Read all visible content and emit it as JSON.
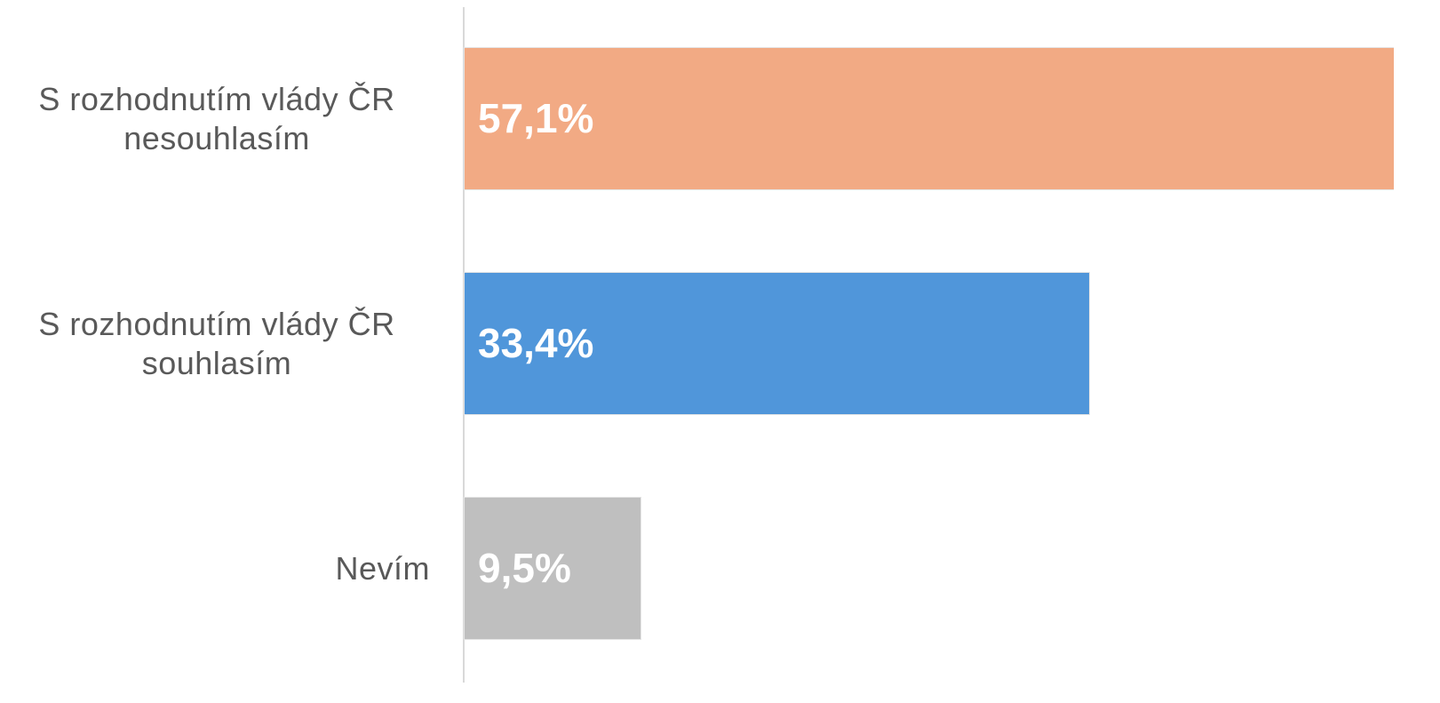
{
  "chart_data": {
    "type": "bar",
    "orientation": "horizontal",
    "categories": [
      "S rozhodnutím vlády ČR nesouhlasím",
      "S rozhodnutím vlády ČR souhlasím",
      "Nevím"
    ],
    "values": [
      57.1,
      33.4,
      9.5
    ],
    "value_labels": [
      "57,1%",
      "33,4%",
      "9,5%"
    ],
    "colors": [
      "#f2aa84",
      "#5096da",
      "#bfbfbf"
    ]
  }
}
